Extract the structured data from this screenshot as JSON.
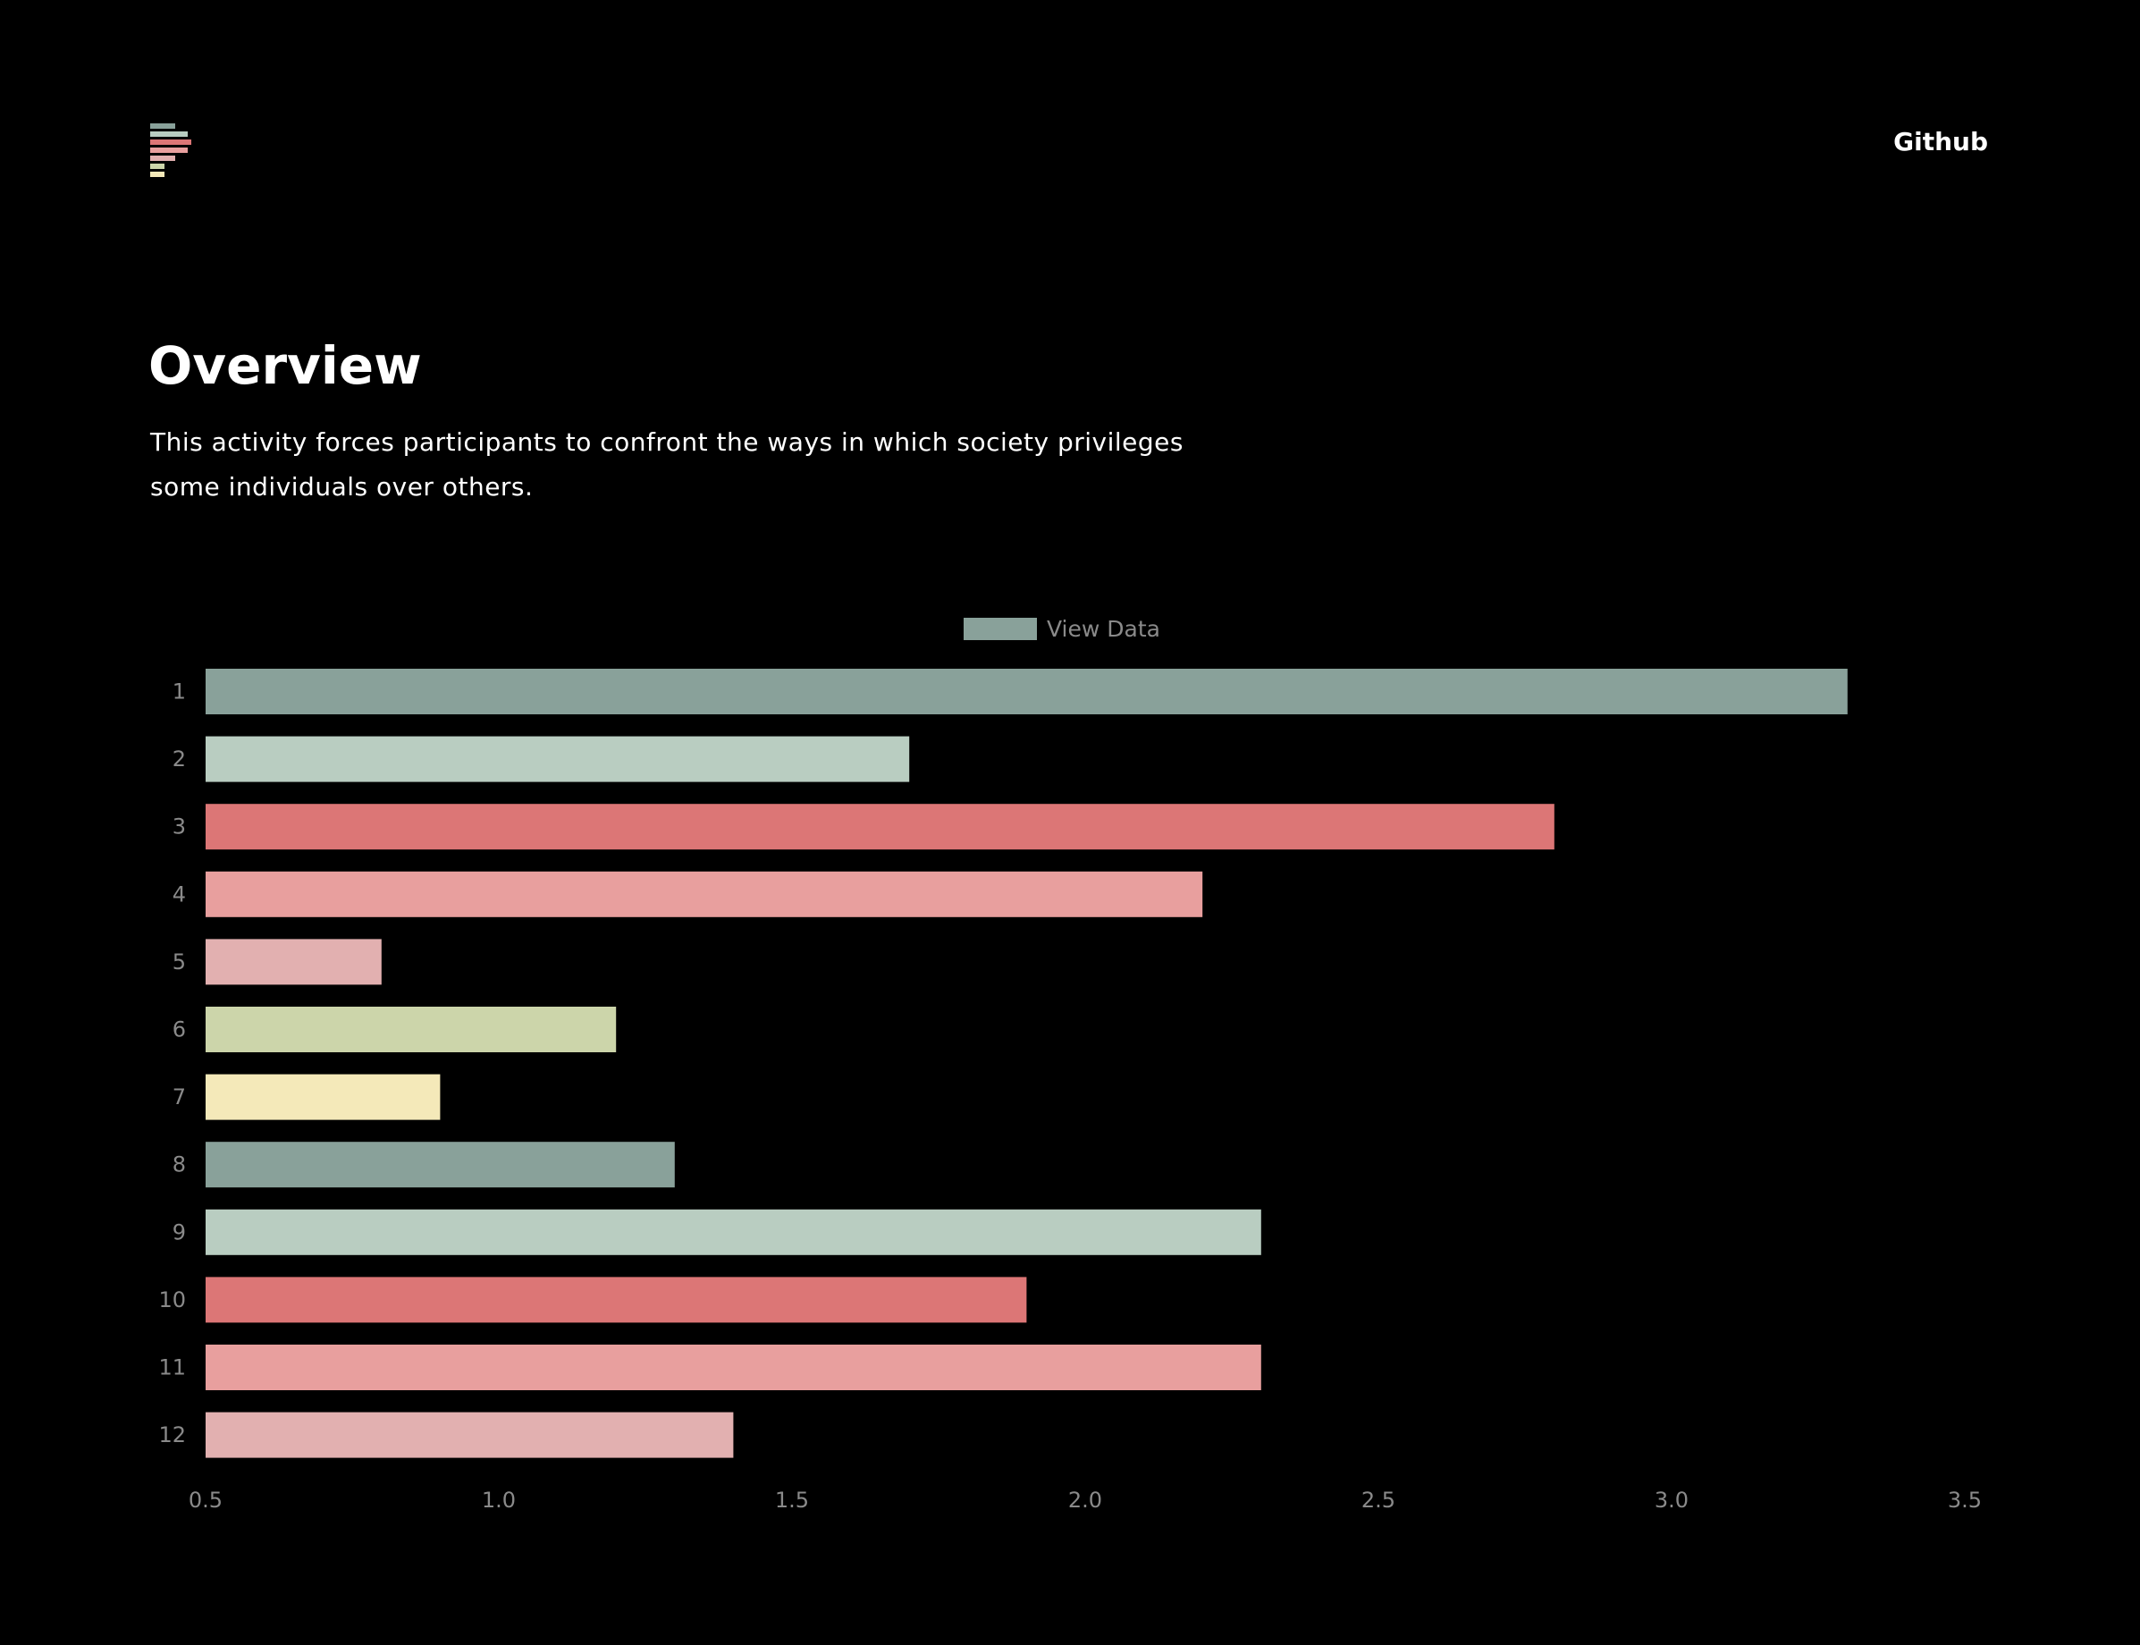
{
  "header": {
    "logo_colors": [
      "#89a19a",
      "#b9cdc1",
      "#dc7676",
      "#e89f9e",
      "#e2b0b0",
      "#ccd5aa",
      "#f4e9b9"
    ],
    "github_label": "Github"
  },
  "main": {
    "title": "Overview",
    "description": "This activity forces participants to confront the ways in which society privileges some individuals over others."
  },
  "chart_data": {
    "type": "bar",
    "orientation": "horizontal",
    "categories": [
      "1",
      "2",
      "3",
      "4",
      "5",
      "6",
      "7",
      "8",
      "9",
      "10",
      "11",
      "12"
    ],
    "series": [
      {
        "name": "View Data",
        "values": [
          3.3,
          1.7,
          2.8,
          2.2,
          0.8,
          1.2,
          0.9,
          1.3,
          2.3,
          1.9,
          2.3,
          1.4
        ]
      }
    ],
    "bar_colors": [
      "#89a19a",
      "#b9cdc1",
      "#dc7676",
      "#e89f9e",
      "#e2b0b0",
      "#ccd5aa",
      "#f4e9b9",
      "#89a19a",
      "#b9cdc1",
      "#dc7676",
      "#e89f9e",
      "#e2b0b0"
    ],
    "legend_color": "#89a19a",
    "xlim": [
      0.5,
      3.5
    ],
    "xticks": [
      "0.5",
      "1.0",
      "1.5",
      "2.0",
      "2.5",
      "3.0",
      "3.5"
    ],
    "legend_position": "top-center",
    "grid": false,
    "title": "",
    "xlabel": "",
    "ylabel": ""
  }
}
